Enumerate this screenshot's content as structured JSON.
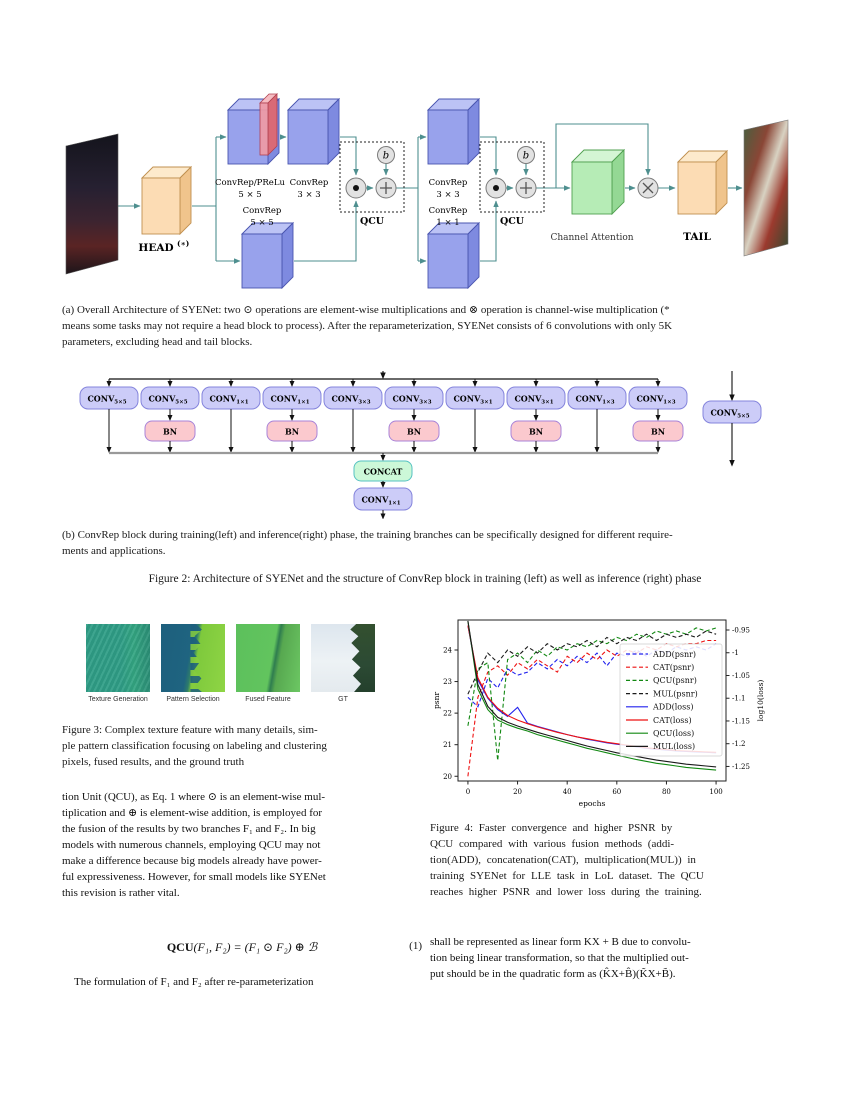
{
  "colors": {
    "arrow": "#4e8f8f",
    "cube_blue_front": "#98a2ec",
    "cube_blue_top": "#bcc3f5",
    "cube_blue_side": "#7e8ae0",
    "cube_blue_stroke": "#4a55b0",
    "cube_orange_front": "#fcdcb4",
    "cube_orange_top": "#fdeacc",
    "cube_orange_side": "#f0c48c",
    "cube_orange_stroke": "#c09050",
    "cube_green_front": "#b6ecb6",
    "cube_green_top": "#d4f5d4",
    "cube_green_side": "#94d894",
    "cube_green_stroke": "#50a050",
    "slab_red_front": "#ef9aa4",
    "slab_red_top": "#f6bcc2",
    "slab_red_side": "#d96a76",
    "slab_red_stroke": "#b04050",
    "conv_fill": "#ccccf8",
    "conv_stroke": "#8484dc",
    "bn_fill": "#fbc9ce",
    "bn_stroke": "#a883d8",
    "concat_fill": "#ccf8d8",
    "concat_stroke": "#56c2c2",
    "circle_fill": "#e2e2e2",
    "circle_stroke": "#7a7a7a"
  },
  "figure2a": {
    "head_label": "HEAD",
    "head_sup": "(∗)",
    "stage1_labels": [
      {
        "t": "ConvRep/PReLu",
        "s": "5 × 5"
      },
      {
        "t": "ConvRep",
        "s": "3 × 3"
      },
      {
        "t": "ConvRep",
        "s": "5 × 5"
      }
    ],
    "stage2_labels": [
      {
        "t": "ConvRep",
        "s": "3 × 3"
      },
      {
        "t": "ConvRep",
        "s": "1 × 1"
      }
    ],
    "qcu_label": "QCU",
    "bias_label": "b",
    "channel_attention_label": "Channel Attention",
    "tail_label": "TAIL",
    "caption_lines": [
      "(a) Overall Architecture of SYENet: two ⊙ operations are element-wise multiplications and ⊗ operation is channel-wise multiplication (*",
      "means some tasks may not require a head block to process). After the reparameterization, SYENet consists of 6 convolutions with only 5K",
      "parameters, excluding head and tail blocks."
    ]
  },
  "figure2b": {
    "conv_base": "CONV",
    "train_subscripts": [
      "5×5",
      "5×5",
      "1×1",
      "1×1",
      "3×3",
      "3×3",
      "3×1",
      "3×1",
      "1×3",
      "1×3"
    ],
    "bn_label": "BN",
    "concat_label": "CONCAT",
    "merge_conv_sub": "1×1",
    "inference_conv_sub": "5×5",
    "caption_lines": [
      "(b) ConvRep block during training(left) and inference(right) phase, the training branches can be specifically designed for different require-",
      "ments and applications."
    ]
  },
  "figure2_caption": "Figure 2: Architecture of SYENet and the structure of ConvRep block in training (left) as well as inference (right) phase",
  "figure3": {
    "panel_labels": [
      "Texture Generation",
      "Pattern Selection",
      "Fused Feature",
      "GT"
    ],
    "caption_lines": [
      "Figure 3: Complex texture feature with many details, sim-",
      "ple pattern classification focusing on labeling and clustering",
      "pixels, fused results, and the ground truth"
    ]
  },
  "figure4": {
    "caption_lines": [
      "Figure 4:  Faster convergence and higher PSNR by",
      "QCU compared with various fusion methods (addi-",
      "tion(ADD), concatenation(CAT), multiplication(MUL)) in",
      "training SYENet for LLE task in LoL dataset.  The QCU",
      "reaches higher PSNR and lower loss during the training."
    ]
  },
  "chart_data": {
    "type": "line",
    "title": "",
    "xlabel": "epochs",
    "ylabel_left": "psnr",
    "ylabel_right": "log10(loss)",
    "x_ticks": [
      0,
      20,
      40,
      60,
      80,
      100
    ],
    "y_ticks_left": [
      20,
      21,
      22,
      23,
      24
    ],
    "y_ticks_right": [
      -0.95,
      -1.0,
      -1.05,
      -1.1,
      -1.15,
      -1.2,
      -1.25
    ],
    "xlim": [
      -4,
      104
    ],
    "ylim_left": [
      19.85,
      24.95
    ],
    "ylim_right": [
      -1.282,
      -0.928
    ],
    "legend_position": "center-right",
    "grid": false,
    "x": [
      0,
      4,
      8,
      12,
      16,
      20,
      24,
      28,
      32,
      36,
      40,
      44,
      48,
      52,
      56,
      60,
      64,
      68,
      72,
      76,
      80,
      84,
      88,
      92,
      96,
      100
    ],
    "series": [
      {
        "name": "ADD(psnr)",
        "axis": "left",
        "style": "dashed",
        "color": "#2222ee",
        "values": [
          22.5,
          22.2,
          23.1,
          22.8,
          23.4,
          23.2,
          23.3,
          23.6,
          23.4,
          23.7,
          23.5,
          23.8,
          23.6,
          23.9,
          23.5,
          23.9,
          23.8,
          24.0,
          23.8,
          24.0,
          23.9,
          24.1,
          24.0,
          24.1,
          24.0,
          24.2
        ]
      },
      {
        "name": "CAT(psnr)",
        "axis": "left",
        "style": "dashed",
        "color": "#ee1111",
        "values": [
          20.0,
          22.5,
          23.3,
          23.5,
          23.2,
          23.6,
          23.4,
          23.7,
          23.5,
          23.3,
          23.8,
          23.6,
          23.9,
          23.7,
          24.0,
          23.8,
          24.0,
          23.9,
          24.1,
          24.0,
          24.2,
          24.1,
          24.2,
          24.2,
          24.3,
          24.3
        ]
      },
      {
        "name": "QCU(psnr)",
        "axis": "left",
        "style": "dashed",
        "color": "#128812",
        "values": [
          21.6,
          23.4,
          23.6,
          20.5,
          23.7,
          23.9,
          23.6,
          24.0,
          23.8,
          24.1,
          24.0,
          24.2,
          24.1,
          24.3,
          24.2,
          24.4,
          24.3,
          24.5,
          24.4,
          24.6,
          24.5,
          24.6,
          24.5,
          24.7,
          24.6,
          24.7
        ]
      },
      {
        "name": "MUL(psnr)",
        "axis": "left",
        "style": "dashed",
        "color": "#1a1a1a",
        "values": [
          22.6,
          23.3,
          23.9,
          23.6,
          24.0,
          23.8,
          24.1,
          23.9,
          24.2,
          24.0,
          24.2,
          24.1,
          24.3,
          24.1,
          24.4,
          24.2,
          24.4,
          24.3,
          24.5,
          24.3,
          24.5,
          24.4,
          24.5,
          24.4,
          24.6,
          24.5
        ]
      },
      {
        "name": "ADD(loss)",
        "axis": "right",
        "style": "solid",
        "color": "#2222ee",
        "values": [
          -0.94,
          -1.06,
          -1.1,
          -1.125,
          -1.14,
          -1.12,
          -1.155,
          -1.162,
          -1.168,
          -1.174,
          -1.18,
          -1.185,
          -1.19,
          -1.194,
          -1.198,
          -1.201,
          -1.204,
          -1.207,
          -1.21,
          -1.212,
          -1.214,
          -1.216,
          -1.217,
          -1.218,
          -1.219,
          -1.22
        ]
      },
      {
        "name": "CAT(loss)",
        "axis": "right",
        "style": "solid",
        "color": "#ee1111",
        "values": [
          -0.94,
          -1.055,
          -1.098,
          -1.122,
          -1.138,
          -1.148,
          -1.156,
          -1.163,
          -1.169,
          -1.175,
          -1.18,
          -1.185,
          -1.189,
          -1.193,
          -1.197,
          -1.2,
          -1.203,
          -1.206,
          -1.209,
          -1.211,
          -1.213,
          -1.215,
          -1.216,
          -1.217,
          -1.218,
          -1.219
        ]
      },
      {
        "name": "QCU(loss)",
        "axis": "right",
        "style": "solid",
        "color": "#128812",
        "values": [
          -0.93,
          -1.08,
          -1.125,
          -1.148,
          -1.158,
          -1.166,
          -1.172,
          -1.18,
          -1.186,
          -1.192,
          -1.198,
          -1.204,
          -1.21,
          -1.215,
          -1.22,
          -1.225,
          -1.23,
          -1.235,
          -1.239,
          -1.243,
          -1.246,
          -1.249,
          -1.252,
          -1.254,
          -1.256,
          -1.258
        ]
      },
      {
        "name": "MUL(loss)",
        "axis": "right",
        "style": "solid",
        "color": "#1a1a1a",
        "values": [
          -0.93,
          -1.07,
          -1.118,
          -1.142,
          -1.153,
          -1.161,
          -1.168,
          -1.175,
          -1.181,
          -1.187,
          -1.193,
          -1.199,
          -1.205,
          -1.21,
          -1.215,
          -1.22,
          -1.224,
          -1.228,
          -1.232,
          -1.236,
          -1.239,
          -1.242,
          -1.245,
          -1.247,
          -1.249,
          -1.251
        ]
      }
    ]
  },
  "left_column": {
    "body_lines": [
      "tion Unit (QCU), as Eq. 1 where ⊙ is an element-wise mul-",
      "tiplication and ⊕ is element-wise addition, is employed for",
      "the fusion of the results by two branches F₁ and F₂. In big",
      "models with numerous channels, employing QCU may not",
      "make a difference because big models already have power-",
      "ful expressiveness. However, for small models like SYENet",
      "this revision is rather vital."
    ],
    "equation": {
      "bold": "QCU",
      "rest": "(F₁, F₂) = (F₁ ⊙ F₂) ⊕ ℬ",
      "number": "(1)"
    },
    "after_lines": [
      "The formulation of F₁ and F₂ after re-parameterization"
    ]
  },
  "right_column": {
    "body_lines": [
      "shall be represented as linear form KX + B due to convolu-",
      "tion being linear transformation, so that the multiplied out-",
      "put should be in the quadratic form as (K̂X+B̂)(K̃X+B̃)."
    ]
  }
}
